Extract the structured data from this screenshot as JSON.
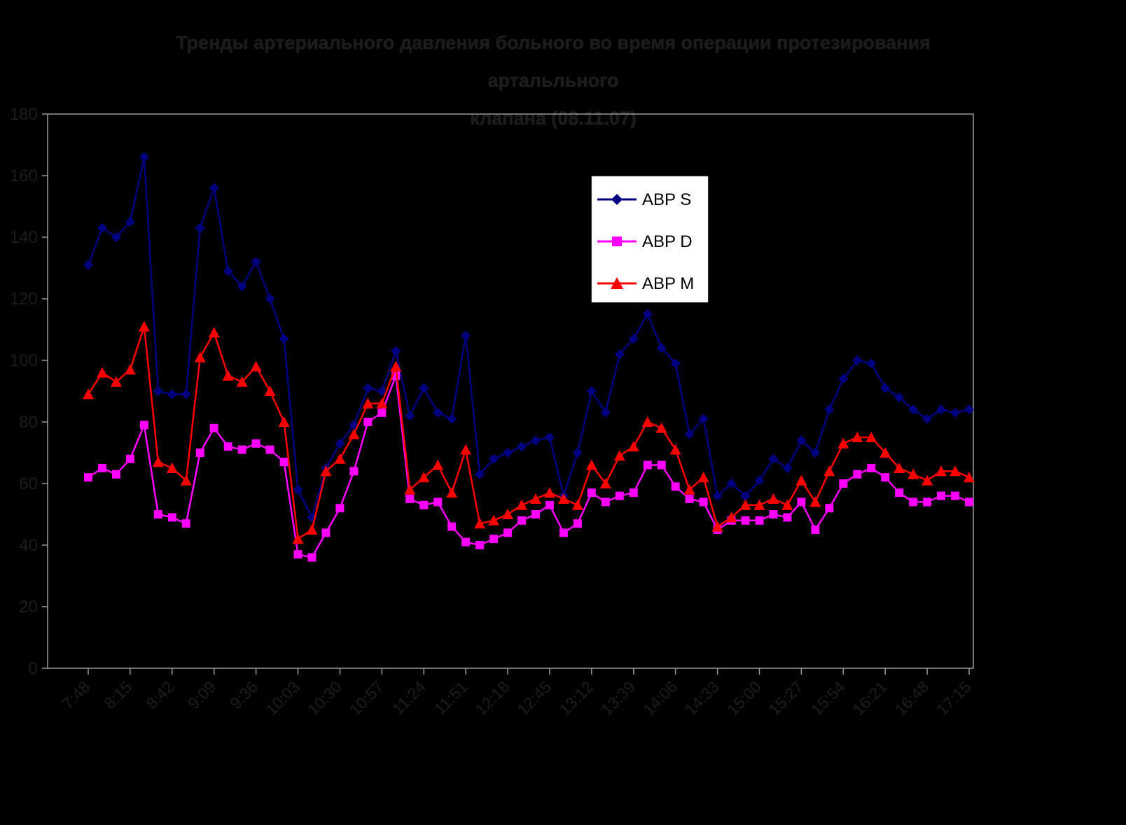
{
  "title": {
    "line1": "Тренды артериального давления больного во время операции протезирования артальльного",
    "line2": "клапана (08.11.07)"
  },
  "colors": {
    "background": "#000000",
    "faint_text": "#1c1c1c",
    "axis_line": "#9a9a9a",
    "legend_background": "#FFFFFF",
    "legend_text": "#000000",
    "abps": "#000080",
    "abpd": "#FF00FF",
    "abpm": "#FF0000"
  },
  "y_axis": {
    "min": 0,
    "max": 180,
    "step": 20,
    "tick_labels": [
      "0",
      "20",
      "40",
      "60",
      "80",
      "100",
      "120",
      "140",
      "160",
      "180"
    ]
  },
  "x_axis": {
    "tick_labels_shown": [
      "7:48",
      "8:15",
      "8:42",
      "9:09",
      "9:36",
      "10:03",
      "10:30",
      "10:57",
      "11:24",
      "11:51",
      "12:18",
      "12:45",
      "13:12",
      "13:39",
      "14:06",
      "14:33",
      "15:00",
      "15:27",
      "15:54",
      "16:21",
      "16:48",
      "17:15"
    ],
    "label_every_n_points": 3
  },
  "legend": {
    "items": [
      {
        "label": "ABP S",
        "marker": "diamond",
        "color": "#000080"
      },
      {
        "label": "ABP D",
        "marker": "square",
        "color": "#FF00FF"
      },
      {
        "label": "ABP M",
        "marker": "triangle",
        "color": "#FF0000"
      }
    ]
  },
  "chart_data": {
    "type": "line",
    "title": "Тренды артериального давления больного во время операции протезирования артальльного клапана (08.11.07)",
    "xlabel": "",
    "ylabel": "",
    "ylim": [
      0,
      180
    ],
    "grid": false,
    "legend_position": "upper-center-right",
    "x": [
      "7:48",
      "7:57",
      "8:06",
      "8:15",
      "8:24",
      "8:33",
      "8:42",
      "8:51",
      "9:00",
      "9:09",
      "9:18",
      "9:27",
      "9:36",
      "9:45",
      "9:54",
      "10:03",
      "10:12",
      "10:21",
      "10:30",
      "10:39",
      "10:48",
      "10:57",
      "11:06",
      "11:15",
      "11:24",
      "11:33",
      "11:42",
      "11:51",
      "12:00",
      "12:09",
      "12:18",
      "12:27",
      "12:36",
      "12:45",
      "12:54",
      "13:03",
      "13:12",
      "13:21",
      "13:30",
      "13:39",
      "13:48",
      "13:57",
      "14:06",
      "14:15",
      "14:24",
      "14:33",
      "14:42",
      "14:51",
      "15:00",
      "15:09",
      "15:18",
      "15:27",
      "15:36",
      "15:45",
      "15:54",
      "16:03",
      "16:12",
      "16:21",
      "16:30",
      "16:39",
      "16:48",
      "16:57",
      "17:06",
      "17:15"
    ],
    "series": [
      {
        "name": "ABP S",
        "marker": "diamond",
        "color": "#000080",
        "values": [
          131,
          143,
          140,
          145,
          166,
          90,
          89,
          89,
          143,
          156,
          129,
          124,
          132,
          120,
          107,
          58,
          49,
          65,
          73,
          79,
          91,
          90,
          103,
          82,
          91,
          83,
          81,
          108,
          63,
          68,
          70,
          72,
          74,
          75,
          56,
          70,
          90,
          83,
          102,
          107,
          115,
          104,
          99,
          76,
          81,
          56,
          60,
          56,
          61,
          68,
          65,
          74,
          70,
          84,
          94,
          100,
          99,
          91,
          88,
          84,
          81,
          84,
          83,
          84
        ]
      },
      {
        "name": "ABP D",
        "marker": "square",
        "color": "#FF00FF",
        "values": [
          62,
          65,
          63,
          68,
          79,
          50,
          49,
          47,
          70,
          78,
          72,
          71,
          73,
          71,
          67,
          37,
          36,
          44,
          52,
          64,
          80,
          83,
          95,
          55,
          53,
          54,
          46,
          41,
          40,
          42,
          44,
          48,
          50,
          53,
          44,
          47,
          57,
          54,
          56,
          57,
          66,
          66,
          59,
          55,
          54,
          45,
          48,
          48,
          48,
          50,
          49,
          54,
          45,
          52,
          60,
          63,
          65,
          62,
          57,
          54,
          54,
          56,
          56,
          54
        ]
      },
      {
        "name": "ABP M",
        "marker": "triangle",
        "color": "#FF0000",
        "values": [
          89,
          96,
          93,
          97,
          111,
          67,
          65,
          61,
          101,
          109,
          95,
          93,
          98,
          90,
          80,
          42,
          45,
          64,
          68,
          76,
          86,
          86,
          98,
          58,
          62,
          66,
          57,
          71,
          47,
          48,
          50,
          53,
          55,
          57,
          55,
          53,
          66,
          60,
          69,
          72,
          80,
          78,
          71,
          58,
          62,
          46,
          49,
          53,
          53,
          55,
          53,
          61,
          54,
          64,
          73,
          75,
          75,
          70,
          65,
          63,
          61,
          64,
          64,
          62
        ]
      }
    ]
  }
}
